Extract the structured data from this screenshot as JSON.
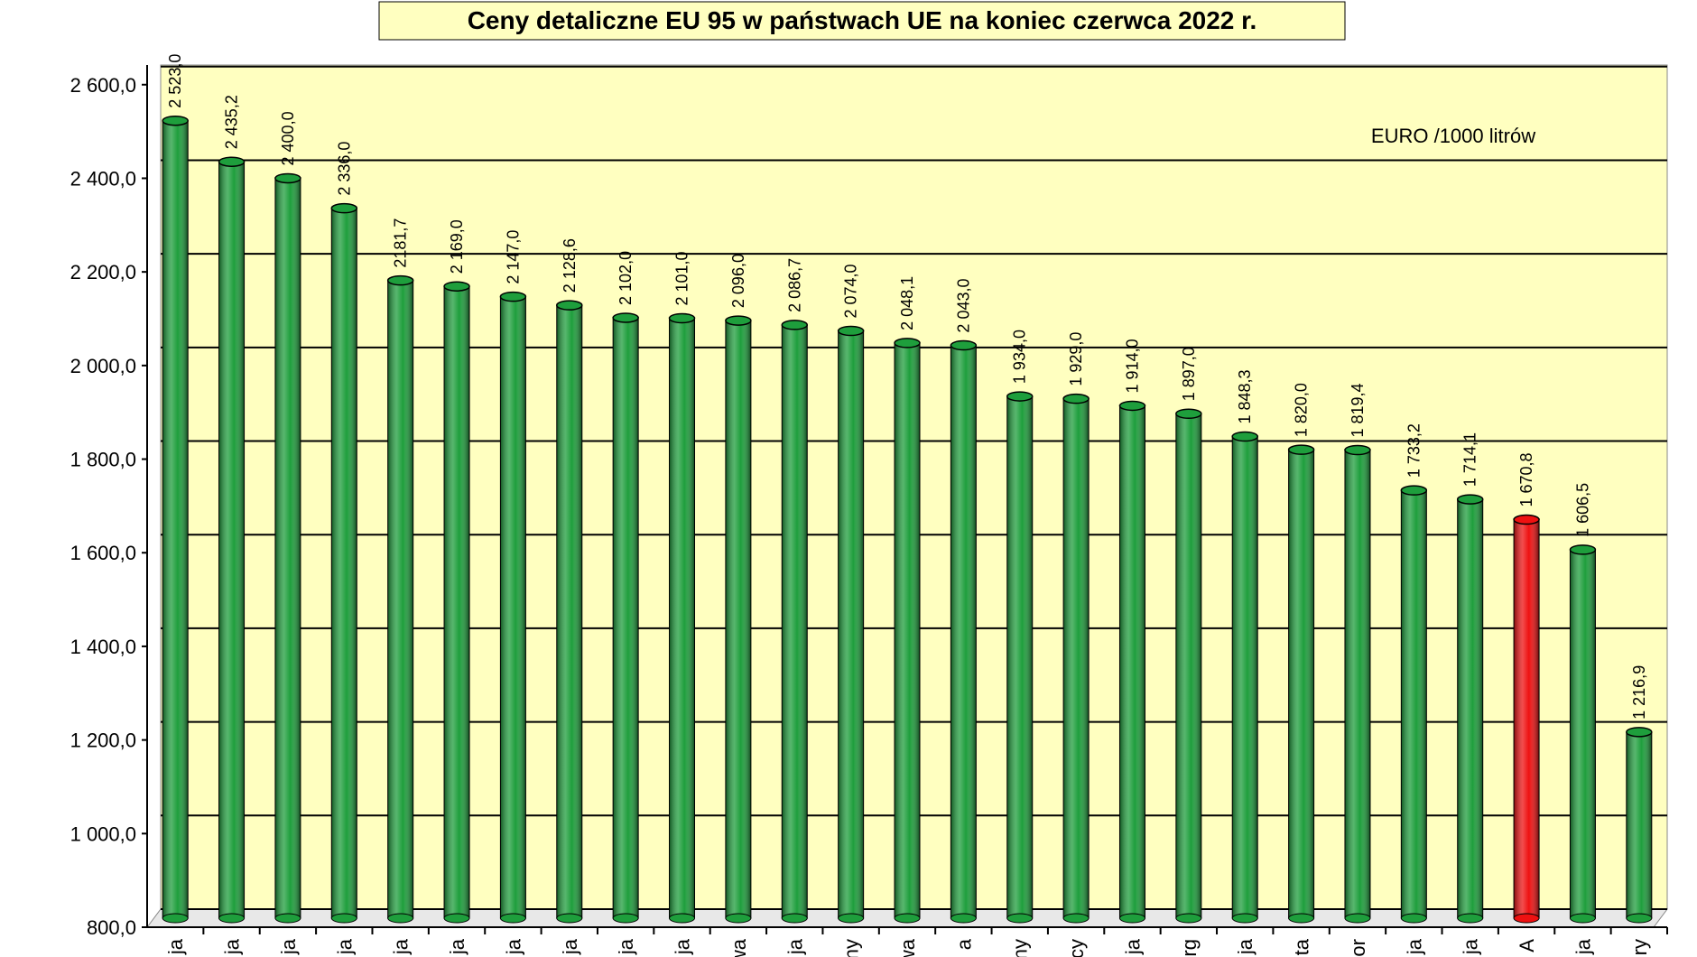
{
  "chart_data": {
    "type": "bar",
    "title": "Ceny detaliczne EU 95 w państwach UE  na  koniec czerwca 2022 r.",
    "annotation": "EURO /1000 litrów",
    "categories": [
      "ja",
      "ja",
      "ja",
      "ja",
      "ja",
      "ja",
      "ja",
      "ja",
      "ja",
      "ja",
      "wa",
      "ja",
      "ny",
      "wa",
      "a",
      "ny",
      "cy",
      "ja",
      "rg",
      "ja",
      "ta",
      "or",
      "ja",
      "ja",
      "A",
      "ja",
      "ry"
    ],
    "values": [
      2523.0,
      2435.2,
      2400.0,
      2336.0,
      2181.7,
      2169.0,
      2147.0,
      2128.6,
      2102.0,
      2101.0,
      2096.0,
      2086.7,
      2074.0,
      2048.1,
      2043.0,
      1934.0,
      1929.0,
      1914.0,
      1897.0,
      1848.3,
      1820.0,
      1819.4,
      1733.2,
      1714.1,
      1670.8,
      1606.5,
      1216.9
    ],
    "value_labels": [
      "2 523,0",
      "2 435,2",
      "2 400,0",
      "2 336,0",
      "2181,7",
      "2 169,0",
      "2 147,0",
      "2 128,6",
      "2 102,0",
      "2 101,0",
      "2 096,0",
      "2 086,7",
      "2 074,0",
      "2 048,1",
      "2 043,0",
      "1 934,0",
      "1 929,0",
      "1 914,0",
      "1 897,0",
      "1 848,3",
      "1 820,0",
      "1 819,4",
      "1 733,2",
      "1 714,1",
      "1 670,8",
      "1 606,5",
      "1 216,9"
    ],
    "colors": [
      "#1e9e3c",
      "#1e9e3c",
      "#1e9e3c",
      "#1e9e3c",
      "#1e9e3c",
      "#1e9e3c",
      "#1e9e3c",
      "#1e9e3c",
      "#1e9e3c",
      "#1e9e3c",
      "#1e9e3c",
      "#1e9e3c",
      "#1e9e3c",
      "#1e9e3c",
      "#1e9e3c",
      "#1e9e3c",
      "#1e9e3c",
      "#1e9e3c",
      "#1e9e3c",
      "#1e9e3c",
      "#1e9e3c",
      "#1e9e3c",
      "#1e9e3c",
      "#1e9e3c",
      "#ee1111",
      "#1e9e3c",
      "#1e9e3c"
    ],
    "ylim": [
      800,
      2642
    ],
    "yticks": [
      {
        "value": 800,
        "label": "800,0"
      },
      {
        "value": 1000,
        "label": "1 000,0"
      },
      {
        "value": 1200,
        "label": "1 200,0"
      },
      {
        "value": 1400,
        "label": "1 400,0"
      },
      {
        "value": 1600,
        "label": "1 600,0"
      },
      {
        "value": 1800,
        "label": "1 800,0"
      },
      {
        "value": 2000,
        "label": "2 000,0"
      },
      {
        "value": 2200,
        "label": "2 200,0"
      },
      {
        "value": 2400,
        "label": "2 400,0"
      },
      {
        "value": 2600,
        "label": "2 600,0"
      }
    ],
    "grid": true
  }
}
